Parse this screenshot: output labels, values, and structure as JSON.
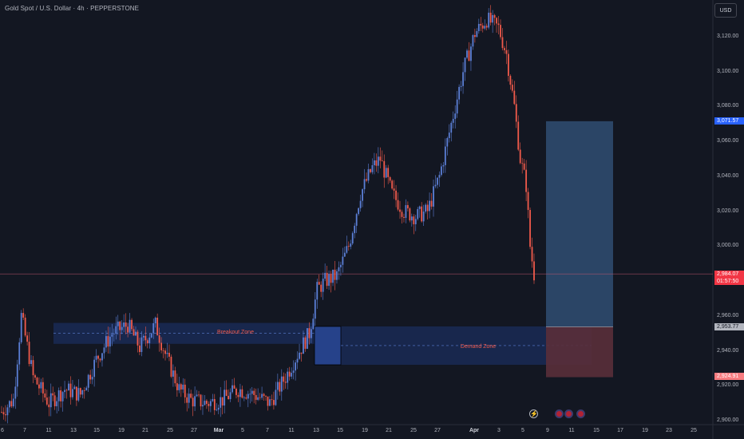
{
  "header": {
    "symbol_title": "Gold Spot / U.S. Dollar · 4h · PEPPERSTONE",
    "currency": "USD"
  },
  "price_axis": {
    "labels": [
      "3,120.00",
      "3,100.00",
      "3,080.00",
      "3,060.00",
      "3,040.00",
      "3,020.00",
      "3,000.00",
      "2,960.00",
      "2,940.00",
      "2,920.00",
      "2,900.00"
    ]
  },
  "date_axis": {
    "labels": [
      "6",
      "7",
      "11",
      "13",
      "15",
      "19",
      "21",
      "25",
      "27",
      "Mar",
      "5",
      "7",
      "11",
      "13",
      "15",
      "19",
      "21",
      "25",
      "27",
      "Apr",
      "3",
      "5",
      "9",
      "11",
      "15",
      "17",
      "19",
      "23",
      "25"
    ]
  },
  "tags": {
    "target": "3,071.57",
    "current_price": "2,984.07",
    "countdown": "01:57:50",
    "entry": "2,953.77",
    "stop": "2,924.91"
  },
  "zones": {
    "breakout": "Breakout Zone",
    "demand": "Demand Zone"
  },
  "colors": {
    "background": "#131722",
    "up": "#5b7fd6",
    "down": "#f05a4b",
    "target_box": "#2f4a6e",
    "stop_box": "#5a2f3a",
    "zone_fill": "#1a2a55"
  },
  "events": [
    "lightning-event-icon",
    "us-flag-event-icon",
    "us-flag-event-icon",
    "us-flag-event-icon"
  ],
  "chart_data": {
    "type": "candlestick",
    "title": "Gold Spot / U.S. Dollar · 4h · PEPPERSTONE",
    "ylim": [
      2900,
      3136
    ],
    "current_price": 2984.07,
    "anchors": [
      [
        0,
        2905
      ],
      [
        6,
        2912
      ],
      [
        10,
        2960
      ],
      [
        16,
        2925
      ],
      [
        24,
        2910
      ],
      [
        32,
        2918
      ],
      [
        40,
        2915
      ],
      [
        48,
        2935
      ],
      [
        56,
        2950
      ],
      [
        64,
        2955
      ],
      [
        70,
        2942
      ],
      [
        78,
        2955
      ],
      [
        84,
        2935
      ],
      [
        90,
        2918
      ],
      [
        96,
        2912
      ],
      [
        104,
        2910
      ],
      [
        112,
        2912
      ],
      [
        120,
        2918
      ],
      [
        128,
        2915
      ],
      [
        136,
        2910
      ],
      [
        144,
        2925
      ],
      [
        150,
        2938
      ],
      [
        156,
        2950
      ],
      [
        160,
        2975
      ],
      [
        164,
        2980
      ],
      [
        170,
        2983
      ],
      [
        176,
        3000
      ],
      [
        182,
        3030
      ],
      [
        188,
        3045
      ],
      [
        192,
        3050
      ],
      [
        198,
        3030
      ],
      [
        204,
        3020
      ],
      [
        210,
        3017
      ],
      [
        216,
        3020
      ],
      [
        222,
        3040
      ],
      [
        228,
        3070
      ],
      [
        234,
        3100
      ],
      [
        240,
        3122
      ],
      [
        246,
        3130
      ],
      [
        252,
        3125
      ],
      [
        256,
        3110
      ],
      [
        260,
        3080
      ],
      [
        263,
        3050
      ],
      [
        266,
        3035
      ],
      [
        268,
        3000
      ],
      [
        270,
        2984
      ]
    ],
    "long_position": {
      "target": 3071.57,
      "entry": 2953.77,
      "stop": 2924.91
    },
    "zones": [
      {
        "name": "Breakout Zone",
        "top": 2956,
        "bottom": 2944
      },
      {
        "name": "Demand Zone",
        "top": 2954,
        "bottom": 2932
      }
    ]
  }
}
